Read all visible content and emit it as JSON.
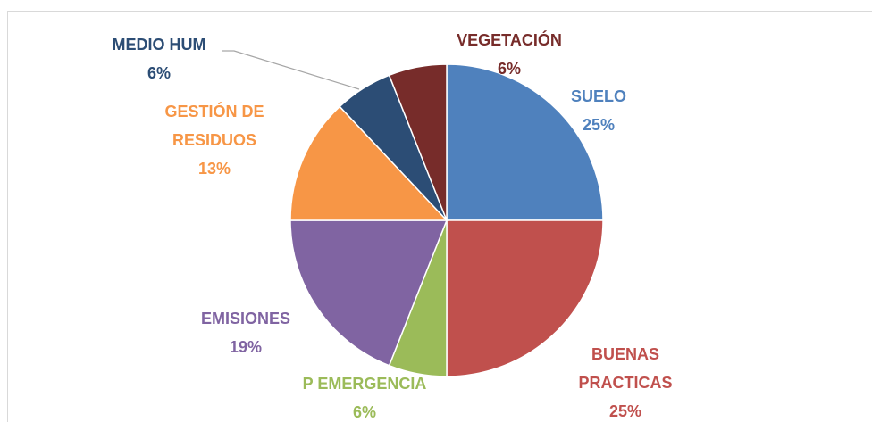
{
  "chart_data": {
    "type": "pie",
    "categories": [
      "SUELO",
      "BUENAS PRACTICAS",
      "P EMERGENCIA",
      "EMISIONES",
      "GESTIÓN DE RESIDUOS",
      "MEDIO HUM",
      "VEGETACIÓN"
    ],
    "values": [
      25,
      25,
      6,
      19,
      13,
      6,
      6
    ],
    "value_labels": [
      "25%",
      "25%",
      "6%",
      "19%",
      "13%",
      "6%",
      "6%"
    ],
    "colors": [
      "#4f81bd",
      "#c0504d",
      "#9bbb59",
      "#8064a2",
      "#f79646",
      "#2c4d75",
      "#772c2a"
    ]
  }
}
